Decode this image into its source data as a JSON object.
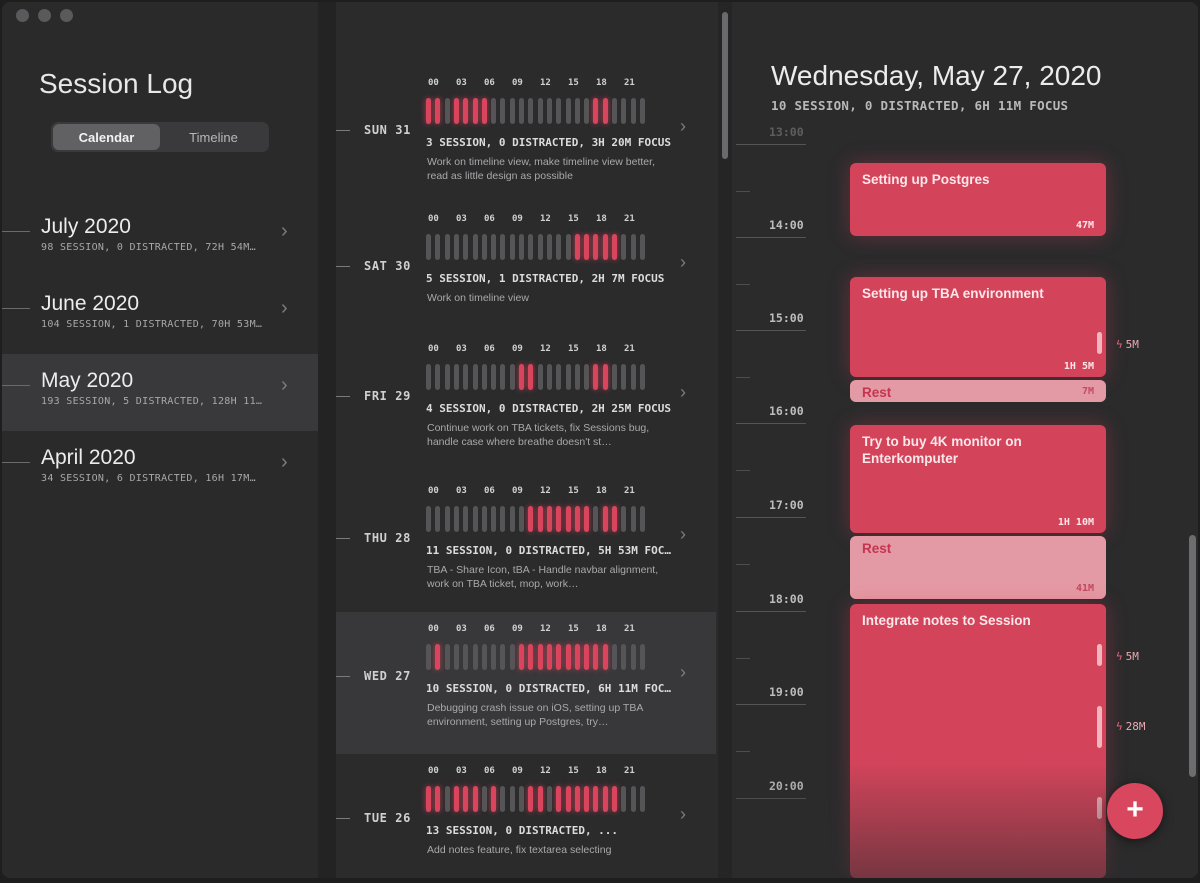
{
  "sidebar": {
    "title": "Session Log",
    "segments": [
      "Calendar",
      "Timeline"
    ],
    "months": [
      {
        "name": "July 2020",
        "stats": "98 SESSION, 0 DISTRACTED, 72H 54M…"
      },
      {
        "name": "June 2020",
        "stats": "104 SESSION, 1 DISTRACTED, 70H 53M…"
      },
      {
        "name": "May 2020",
        "stats": "193 SESSION, 5 DISTRACTED, 128H 11…"
      },
      {
        "name": "April 2020",
        "stats": "34 SESSION, 6 DISTRACTED, 16H 17M…"
      }
    ]
  },
  "hour_labels": [
    "00",
    "03",
    "06",
    "09",
    "12",
    "15",
    "18",
    "21"
  ],
  "days": [
    {
      "label": "SUN 31",
      "stats": "3 SESSION, 0 DISTRACTED, 3H 20M FOCUS",
      "note": "Work on timeline view, make timeline view better, read as little design as possible",
      "focus": [
        0,
        1,
        3,
        4,
        5,
        6,
        18,
        19
      ]
    },
    {
      "label": "SAT 30",
      "stats": "5 SESSION, 1 DISTRACTED, 2H 7M FOCUS",
      "note": "Work on timeline view",
      "focus": [
        16,
        17,
        18,
        19,
        20
      ]
    },
    {
      "label": "FRI 29",
      "stats": "4 SESSION, 0 DISTRACTED, 2H 25M FOCUS",
      "note": "Continue work on TBA tickets, fix Sessions bug, handle case where breathe doesn't st…",
      "focus": [
        10,
        11,
        18,
        19
      ]
    },
    {
      "label": "THU 28",
      "stats": "11 SESSION, 0 DISTRACTED, 5H 53M FOC…",
      "note": "TBA - Share Icon, tBA - Handle navbar alignment, work on TBA ticket, mop, work…",
      "focus": [
        11,
        12,
        13,
        14,
        15,
        16,
        17,
        19,
        20
      ]
    },
    {
      "label": "WED 27",
      "stats": "10 SESSION, 0 DISTRACTED, 6H 11M FOC…",
      "note": "Debugging crash issue on iOS, setting up TBA environment, setting up Postgres, try…",
      "focus": [
        1,
        10,
        11,
        12,
        13,
        14,
        15,
        16,
        17,
        18,
        19
      ]
    },
    {
      "label": "TUE 26",
      "stats": "13 SESSION, 0 DISTRACTED, ...",
      "note": "Add notes feature, fix textarea selecting",
      "focus": [
        0,
        1,
        3,
        4,
        5,
        7,
        11,
        12,
        14,
        15,
        16,
        17,
        18,
        19,
        20
      ]
    }
  ],
  "detail": {
    "title": "Wednesday, May 27, 2020",
    "subtitle": "10 SESSION, 0 DISTRACTED, 6H 11M FOCUS",
    "hours": [
      "13:00",
      "14:00",
      "15:00",
      "16:00",
      "17:00",
      "18:00",
      "19:00",
      "20:00"
    ],
    "blocks": [
      {
        "title": "Setting up Postgres",
        "duration": "47M",
        "rest": false
      },
      {
        "title": "Setting up TBA environment",
        "duration": "1H 5M",
        "rest": false
      },
      {
        "title": "Rest",
        "duration": "7M",
        "rest": true
      },
      {
        "title": "Try to buy 4K monitor on Enterkomputer",
        "duration": "1H 10M",
        "rest": false
      },
      {
        "title": "Rest",
        "duration": "41M",
        "rest": true
      },
      {
        "title": "Integrate notes to Session",
        "duration": "",
        "rest": false
      }
    ],
    "distractions": [
      "5M",
      "5M",
      "28M"
    ],
    "add_label": "+"
  },
  "colors": {
    "accent": "#d3445b",
    "rest": "#e49aa4",
    "inactive_bar": "#555557"
  }
}
